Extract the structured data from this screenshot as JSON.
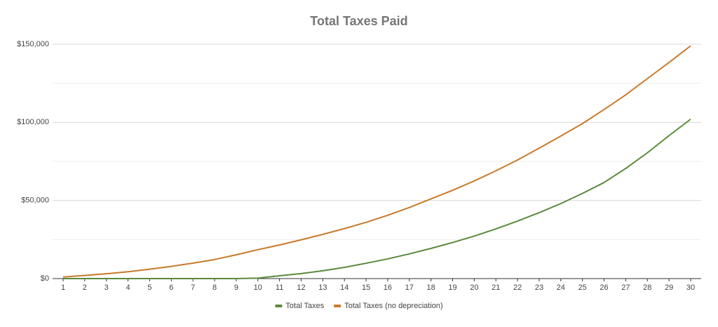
{
  "chart_data": {
    "type": "line",
    "title": "Total Taxes Paid",
    "categories": [
      "1",
      "2",
      "3",
      "4",
      "5",
      "6",
      "7",
      "8",
      "9",
      "10",
      "11",
      "12",
      "13",
      "14",
      "15",
      "16",
      "17",
      "18",
      "19",
      "20",
      "21",
      "22",
      "23",
      "24",
      "25",
      "26",
      "27",
      "28",
      "29",
      "30"
    ],
    "series": [
      {
        "name": "Total Taxes",
        "color": "#5a8a3c",
        "values": [
          0,
          0,
          0,
          0,
          0,
          0,
          0,
          0,
          0,
          300,
          1800,
          3200,
          5000,
          7200,
          9800,
          12600,
          15800,
          19300,
          23100,
          27200,
          31800,
          36800,
          42200,
          48000,
          54500,
          61500,
          70500,
          80500,
          91500,
          102000
        ]
      },
      {
        "name": "Total Taxes (no depreciation)",
        "color": "#c87a2a",
        "values": [
          1000,
          2000,
          3100,
          4400,
          6000,
          7800,
          9900,
          12200,
          15200,
          18500,
          21500,
          24800,
          28300,
          32000,
          36000,
          40500,
          45500,
          51000,
          56500,
          62500,
          69000,
          75900,
          83500,
          91200,
          99200,
          108200,
          117600,
          128000,
          138300,
          149000
        ]
      }
    ],
    "ylim": [
      0,
      150000
    ],
    "yticks": [
      {
        "value": 0,
        "label": "$0"
      },
      {
        "value": 50000,
        "label": "$50,000"
      },
      {
        "value": 100000,
        "label": "$100,000"
      },
      {
        "value": 150000,
        "label": "$150,000"
      }
    ],
    "minor_yticks": [
      25000,
      75000,
      125000
    ],
    "grid": true,
    "legend": "bottom"
  }
}
